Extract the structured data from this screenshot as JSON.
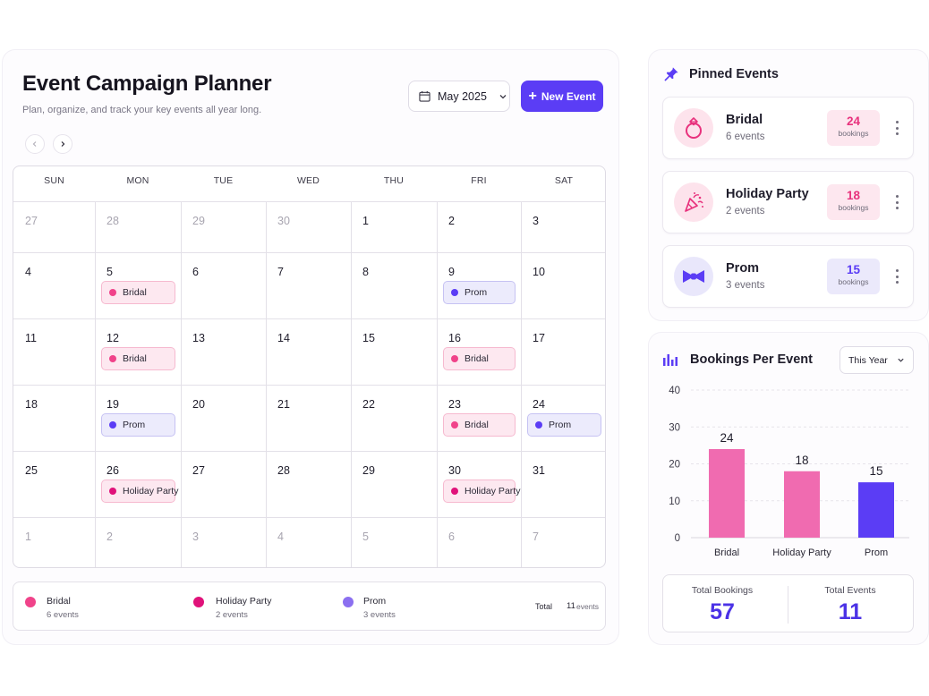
{
  "header": {
    "title": "Event Campaign Planner",
    "subtitle": "Plan, organize, and track your key events all year long.",
    "month_label": "May 2025",
    "new_event_label": "New Event"
  },
  "calendar": {
    "weekdays": [
      "SUN",
      "MON",
      "TUE",
      "WED",
      "THU",
      "FRI",
      "SAT"
    ],
    "weeks": [
      [
        {
          "day": "27",
          "muted": true
        },
        {
          "day": "28",
          "muted": true
        },
        {
          "day": "29",
          "muted": true
        },
        {
          "day": "30",
          "muted": true
        },
        {
          "day": "1"
        },
        {
          "day": "2"
        },
        {
          "day": "3"
        }
      ],
      [
        {
          "day": "4"
        },
        {
          "day": "5",
          "event": "Bridal",
          "kind": "bridal"
        },
        {
          "day": "6"
        },
        {
          "day": "7"
        },
        {
          "day": "8"
        },
        {
          "day": "9",
          "event": "Prom",
          "kind": "prom"
        },
        {
          "day": "10"
        }
      ],
      [
        {
          "day": "11"
        },
        {
          "day": "12",
          "event": "Bridal",
          "kind": "bridal"
        },
        {
          "day": "13"
        },
        {
          "day": "14"
        },
        {
          "day": "15"
        },
        {
          "day": "16",
          "event": "Bridal",
          "kind": "bridal"
        },
        {
          "day": "17"
        }
      ],
      [
        {
          "day": "18"
        },
        {
          "day": "19",
          "event": "Prom",
          "kind": "prom"
        },
        {
          "day": "20"
        },
        {
          "day": "21"
        },
        {
          "day": "22"
        },
        {
          "day": "23",
          "event": "Bridal",
          "kind": "bridal"
        },
        {
          "day": "24",
          "event": "Prom",
          "kind": "prom"
        }
      ],
      [
        {
          "day": "25"
        },
        {
          "day": "26",
          "event": "Holiday Party",
          "kind": "holiday"
        },
        {
          "day": "27"
        },
        {
          "day": "28"
        },
        {
          "day": "29"
        },
        {
          "day": "30",
          "event": "Holiday Party",
          "kind": "holiday"
        },
        {
          "day": "31"
        }
      ],
      [
        {
          "day": "1",
          "muted": true
        },
        {
          "day": "2",
          "muted": true
        },
        {
          "day": "3",
          "muted": true
        },
        {
          "day": "4",
          "muted": true
        },
        {
          "day": "5",
          "muted": true
        },
        {
          "day": "6",
          "muted": true
        },
        {
          "day": "7",
          "muted": true
        }
      ]
    ]
  },
  "legend": {
    "items": [
      {
        "name": "Bridal",
        "count": "6 events",
        "color": "#f0438a"
      },
      {
        "name": "Holiday Party",
        "count": "2 events",
        "color": "#e0127a"
      },
      {
        "name": "Prom",
        "count": "3 events",
        "color": "#8b6ff0"
      }
    ],
    "total_label": "Total",
    "total_value": "11",
    "total_unit": "events"
  },
  "pinned": {
    "title": "Pinned Events",
    "items": [
      {
        "name": "Bridal",
        "sub": "6 events",
        "count": "24",
        "unit": "bookings",
        "icon": "ring-icon",
        "accent": "#e8327d",
        "badge_bg": "#fde7ef",
        "avatar_bg": "#fde3ec"
      },
      {
        "name": "Holiday Party",
        "sub": "2 events",
        "count": "18",
        "unit": "bookings",
        "icon": "party-popper-icon",
        "accent": "#e8327d",
        "badge_bg": "#fde7ef",
        "avatar_bg": "#fde3ec"
      },
      {
        "name": "Prom",
        "sub": "3 events",
        "count": "15",
        "unit": "bookings",
        "icon": "bowtie-icon",
        "accent": "#5b3df5",
        "badge_bg": "#ebe9fb",
        "avatar_bg": "#e9e7fb"
      }
    ]
  },
  "bookings": {
    "title": "Bookings Per Event",
    "range_label": "This Year",
    "total_bookings_label": "Total Bookings",
    "total_bookings_value": "57",
    "total_events_label": "Total Events",
    "total_events_value": "11"
  },
  "chart_data": {
    "type": "bar",
    "categories": [
      "Bridal",
      "Holiday Party",
      "Prom"
    ],
    "values": [
      24,
      18,
      15
    ],
    "colors": [
      "#f06bb0",
      "#f06bb0",
      "#5b3df5"
    ],
    "yticks": [
      0,
      10,
      20,
      30,
      40
    ],
    "ylim": [
      0,
      40
    ],
    "grid": true
  },
  "colors": {
    "accent": "#5b3df5",
    "pink": "#f0438a"
  }
}
